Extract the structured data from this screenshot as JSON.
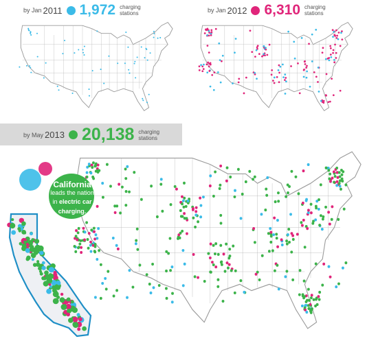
{
  "panels": [
    {
      "id": "jan2011",
      "by": "by Jan",
      "year": "2011",
      "count": "1,972",
      "label_line1": "charging",
      "label_line2": "stations",
      "color": "#3bbbe8"
    },
    {
      "id": "jan2012",
      "by": "by Jan",
      "year": "2012",
      "count": "6,310",
      "label_line1": "charging",
      "label_line2": "stations",
      "color": "#e0257a"
    },
    {
      "id": "may2013",
      "by": "by May",
      "year": "2013",
      "count": "20,138",
      "label_line1": "charging",
      "label_line2": "stations",
      "color": "#3cb34a"
    }
  ],
  "callout": {
    "title": "California",
    "line1": "leads the nation",
    "line2": "in",
    "line2_bold": "electric car",
    "line3": "charging."
  },
  "colors": {
    "cyan": "#3bbbe8",
    "magenta": "#e0257a",
    "green": "#3cb34a",
    "callout_bg": "#3cb34a",
    "california_fill": "#eef0f4",
    "california_stroke": "#1f8fc6"
  }
}
